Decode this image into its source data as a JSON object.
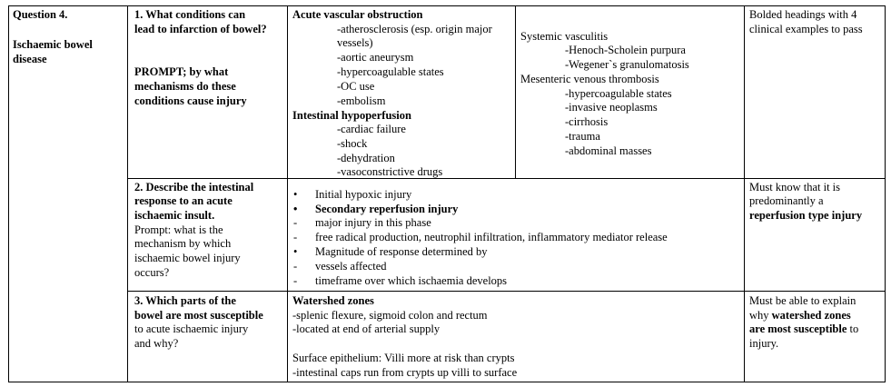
{
  "question": {
    "number": "Question 4.",
    "topic": "Ischaemic bowel disease"
  },
  "rows": [
    {
      "question_lines": [
        "1.  What conditions can",
        "lead to infarction of bowel?"
      ],
      "prompt_lines": [
        "PROMPT; by what",
        "mechanisms do these",
        "conditions cause injury"
      ],
      "answer_left": {
        "heading1": "Acute vascular obstruction",
        "items1": [
          "-atherosclerosis (esp. origin major",
          "vessels)",
          "-aortic aneurysm",
          "-hypercoagulable states",
          "-OC use",
          "-embolism"
        ],
        "heading2": "Intestinal hypoperfusion",
        "items2": [
          "-cardiac failure",
          "-shock",
          "-dehydration",
          "-vasoconstrictive drugs"
        ]
      },
      "answer_right": {
        "heading1": "Systemic vasculitis",
        "items1": [
          "-Henoch-Scholein purpura",
          "-Wegener`s granulomatosis"
        ],
        "heading2": "Mesenteric venous thrombosis",
        "items2": [
          "-hypercoagulable states",
          "-invasive neoplasms",
          "-cirrhosis",
          "-trauma",
          "-abdominal masses"
        ]
      },
      "note_lines": [
        "Bolded headings   with 4",
        "clinical examples to pass"
      ]
    },
    {
      "question_bold_lines": [
        "2.  Describe the intestinal",
        "response to an acute",
        "ischaemic insult."
      ],
      "question_lines": [
        "Prompt: what is the",
        "mechanism by which",
        "ischaemic bowel injury",
        "occurs?"
      ],
      "answer_items": [
        {
          "marker": "bullet",
          "text": "Initial hypoxic injury",
          "bold": false
        },
        {
          "marker": "bullet",
          "text": "Secondary reperfusion injury",
          "bold": true
        },
        {
          "marker": "dash",
          "text": "major injury in this phase",
          "bold": false
        },
        {
          "marker": "dash",
          "text": "free radical production, neutrophil infiltration, inflammatory mediator release",
          "bold": false
        },
        {
          "marker": "bullet",
          "text": "Magnitude of response determined by",
          "bold": false
        },
        {
          "marker": "dash",
          "text": "vessels affected",
          "bold": false
        },
        {
          "marker": "dash",
          "text": "timeframe over which ischaemia develops",
          "bold": false
        }
      ],
      "note_lines": [
        "Must know that it is",
        "predominantly a"
      ],
      "note_bold": "reperfusion type injury"
    },
    {
      "question_bold_lines": [
        "3. Which parts of the",
        "bowel are most susceptible"
      ],
      "question_lines": [
        "to acute ischaemic injury",
        "and why?"
      ],
      "answer_heading": "Watershed zones",
      "answer_lines": [
        "-splenic flexure, sigmoid colon and rectum",
        "-located at end of arterial supply"
      ],
      "answer_lines2": [
        "Surface epithelium: Villi more at risk than crypts",
        "-intestinal caps run from crypts up villi to surface"
      ],
      "note_line1": "Must be able to explain",
      "note_line2_plain": "why ",
      "note_line2_bold": "watershed zones",
      "note_line3_bold": "are most susceptible",
      "note_line3_plain": " to",
      "note_line4": "injury."
    }
  ]
}
